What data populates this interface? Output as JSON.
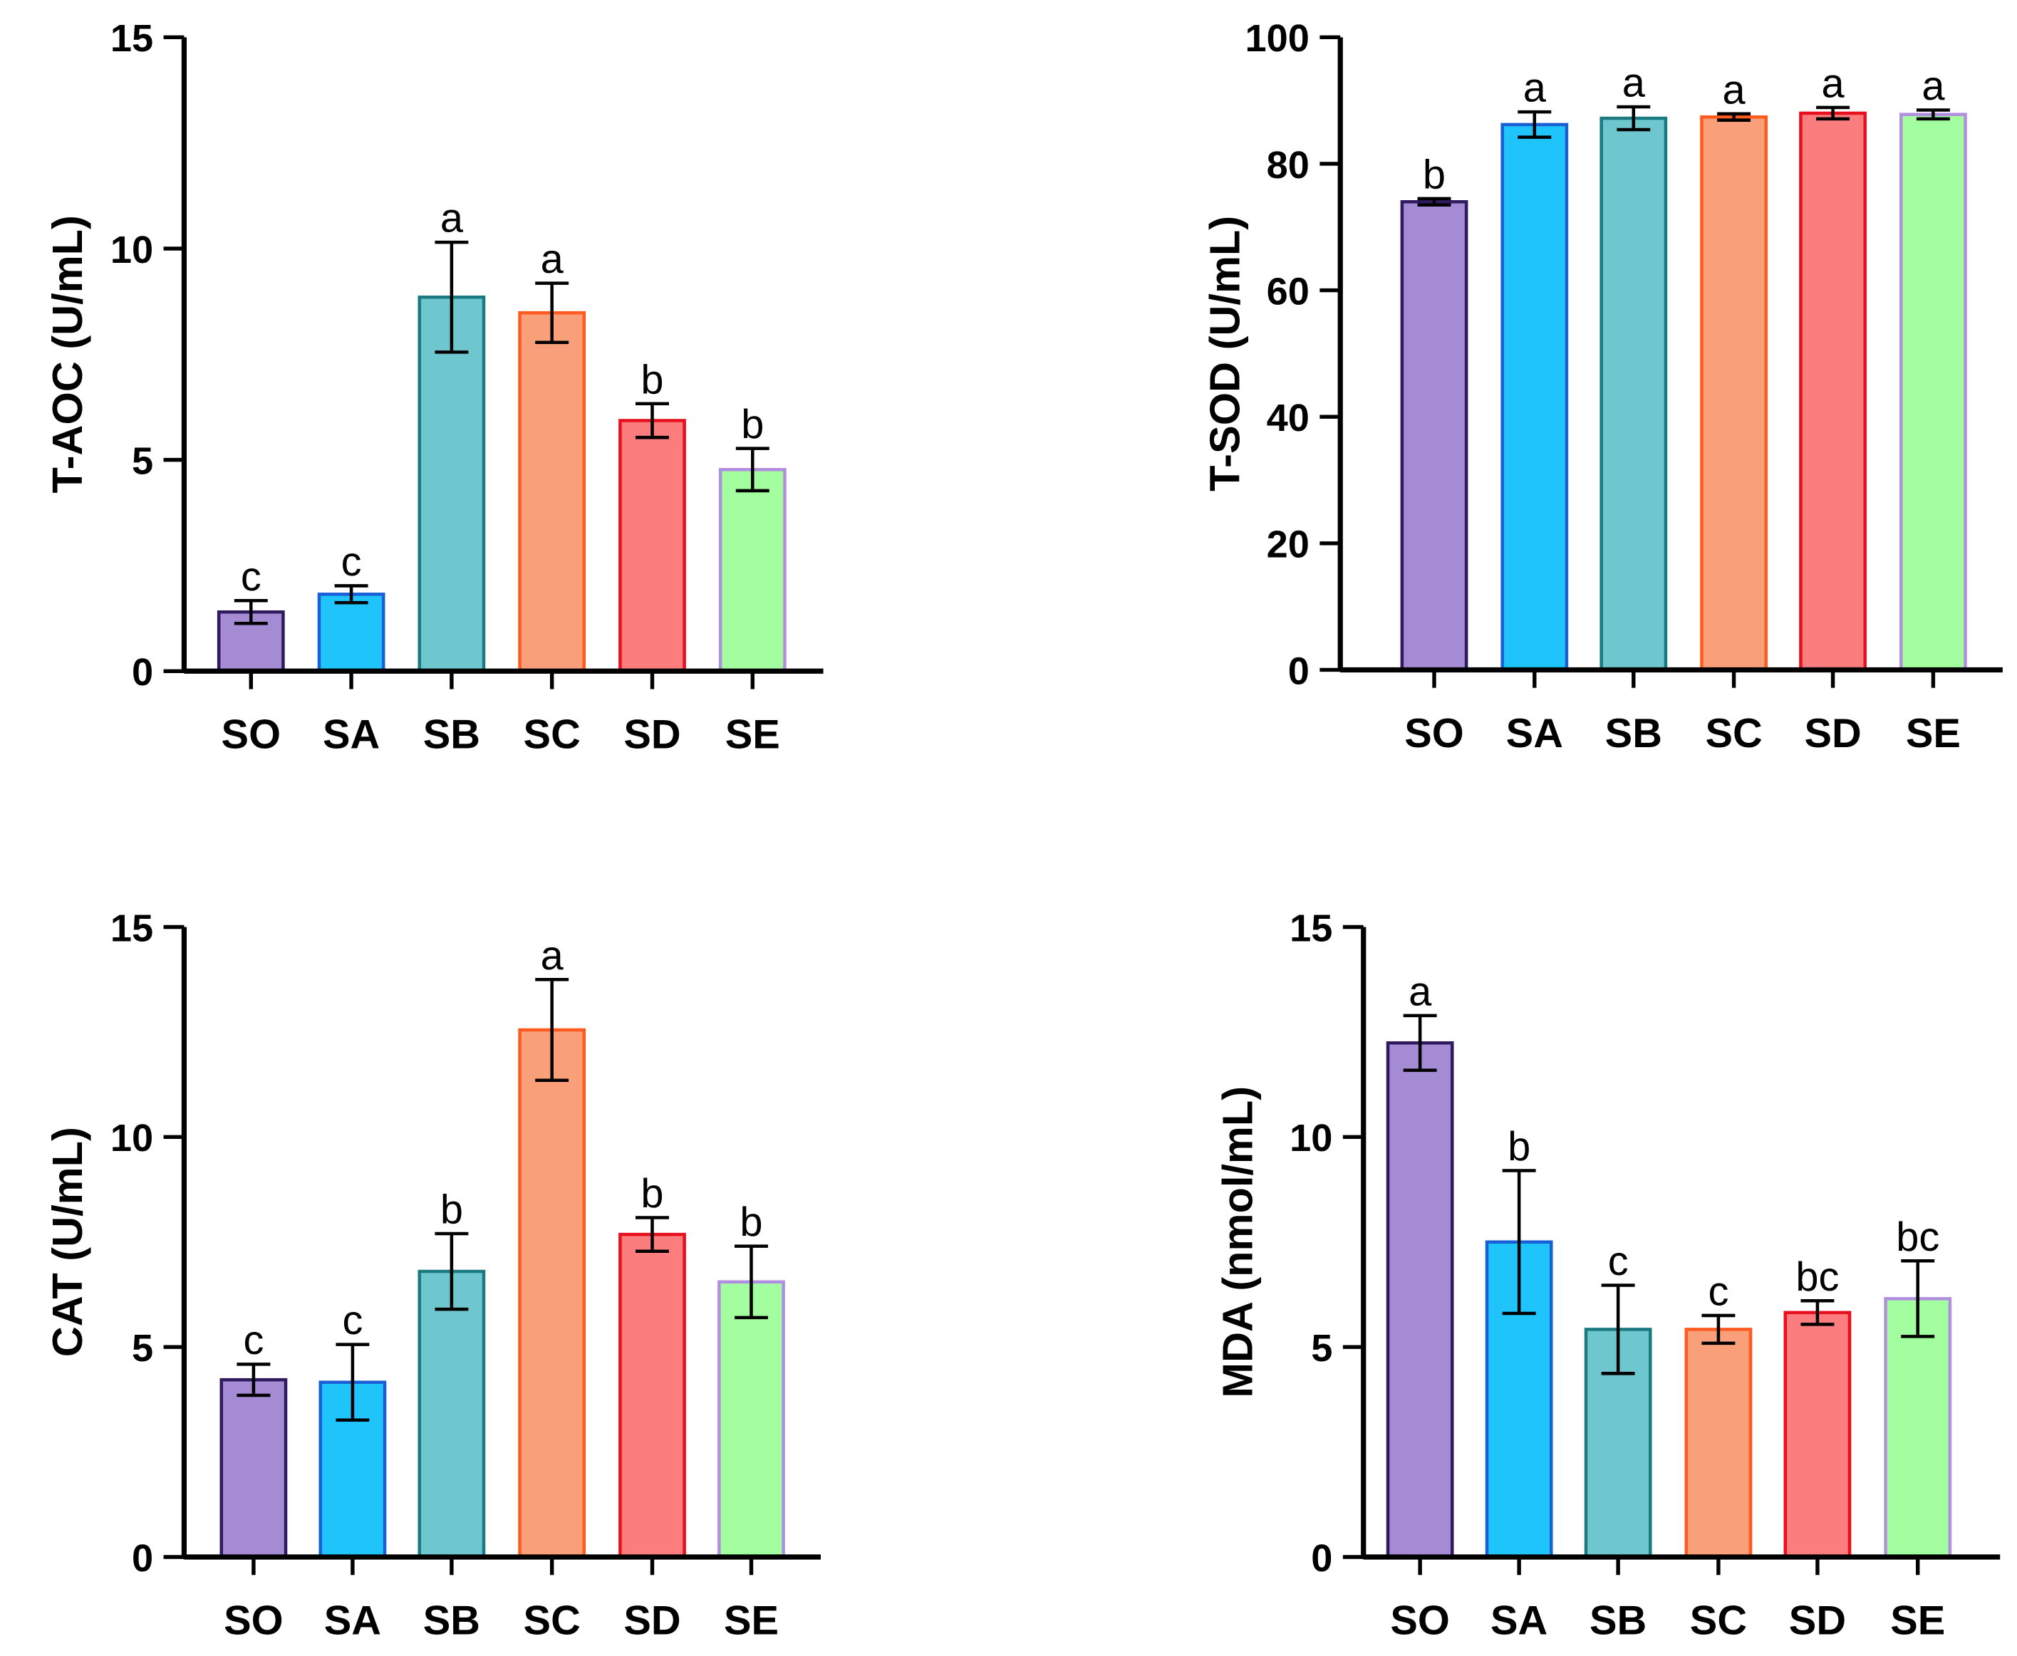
{
  "chart_data": [
    {
      "type": "bar",
      "ylabel": "T-AOC (U/mL)",
      "categories": [
        "SO",
        "SA",
        "SB",
        "SC",
        "SD",
        "SE"
      ],
      "values": [
        1.4,
        1.82,
        8.85,
        8.48,
        5.93,
        4.77
      ],
      "errors": [
        0.27,
        0.2,
        1.3,
        0.7,
        0.4,
        0.5
      ],
      "letters": [
        "c",
        "c",
        "a",
        "a",
        "b",
        "b"
      ],
      "ylim": [
        0,
        15
      ],
      "yticks": [
        "0",
        "5",
        "10",
        "15"
      ]
    },
    {
      "type": "bar",
      "ylabel": "T-SOD (U/mL)",
      "categories": [
        "SO",
        "SA",
        "SB",
        "SC",
        "SD",
        "SE"
      ],
      "values": [
        74.0,
        86.2,
        87.2,
        87.4,
        88.0,
        87.8
      ],
      "errors": [
        0.5,
        2.0,
        1.8,
        0.5,
        0.9,
        0.7
      ],
      "letters": [
        "b",
        "a",
        "a",
        "a",
        "a",
        "a"
      ],
      "ylim": [
        0,
        100
      ],
      "yticks": [
        "0",
        "20",
        "40",
        "60",
        "80",
        "100"
      ]
    },
    {
      "type": "bar",
      "ylabel": "CAT (U/mL)",
      "categories": [
        "SO",
        "SA",
        "SB",
        "SC",
        "SD",
        "SE"
      ],
      "values": [
        4.22,
        4.16,
        6.8,
        12.55,
        7.68,
        6.55
      ],
      "errors": [
        0.37,
        0.9,
        0.9,
        1.2,
        0.4,
        0.85
      ],
      "letters": [
        "c",
        "c",
        "b",
        "a",
        "b",
        "b"
      ],
      "ylim": [
        0,
        15
      ],
      "yticks": [
        "0",
        "5",
        "10",
        "15"
      ]
    },
    {
      "type": "bar",
      "ylabel": "MDA (nmol/mL)",
      "categories": [
        "SO",
        "SA",
        "SB",
        "SC",
        "SD",
        "SE"
      ],
      "values": [
        12.24,
        7.5,
        5.42,
        5.42,
        5.82,
        6.15
      ],
      "errors": [
        0.65,
        1.7,
        1.05,
        0.33,
        0.28,
        0.9
      ],
      "letters": [
        "a",
        "b",
        "c",
        "c",
        "bc",
        "bc"
      ],
      "ylim": [
        0,
        15
      ],
      "yticks": [
        "0",
        "5",
        "10",
        "15"
      ]
    }
  ],
  "colors": {
    "fill": [
      "#a48bd4",
      "#1fc4fb",
      "#6ec7ce",
      "#f9a07a",
      "#fb7d7e",
      "#a2fe9e"
    ],
    "stroke": [
      "#2e1a5c",
      "#1a5fd6",
      "#1a7a80",
      "#ff5a1f",
      "#e8101e",
      "#b28ee0"
    ]
  }
}
